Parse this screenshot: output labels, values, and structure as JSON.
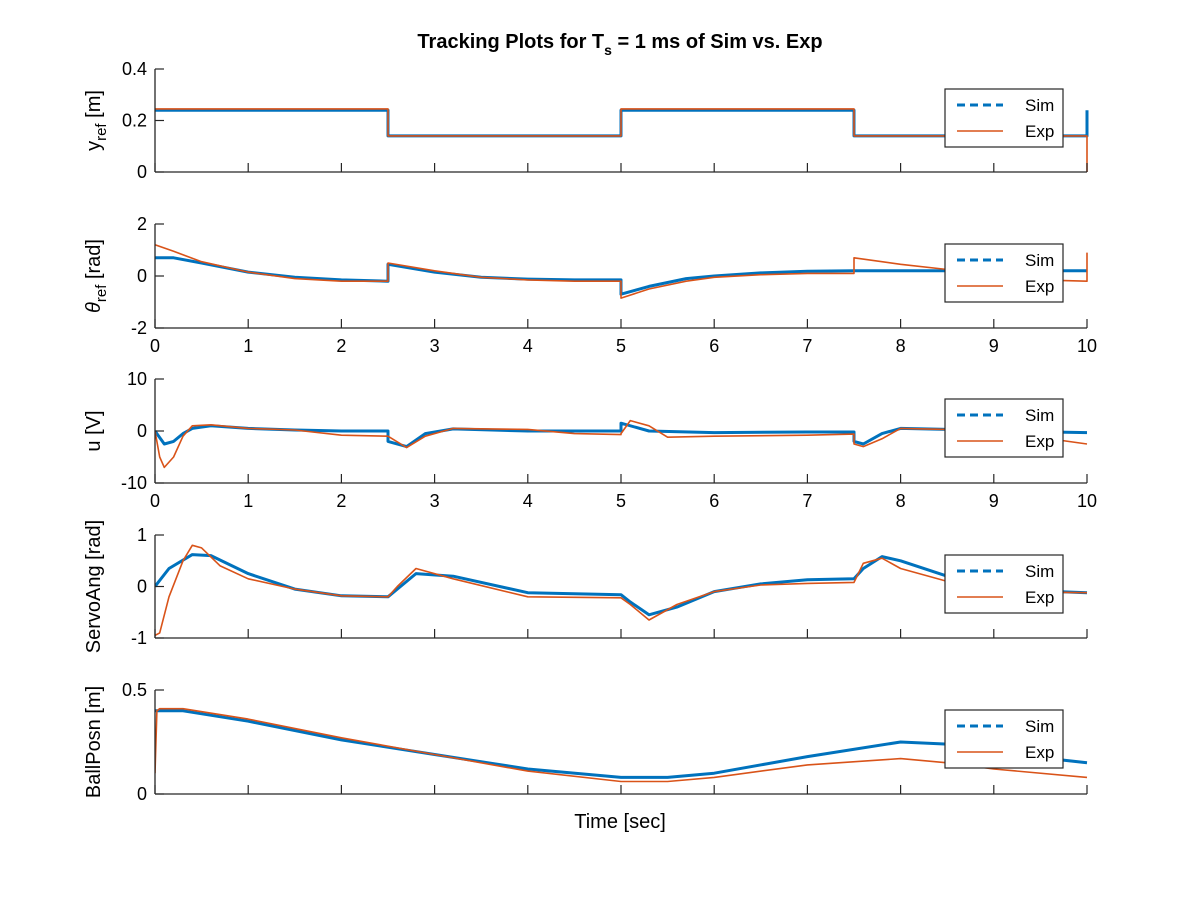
{
  "figure": {
    "title": "Tracking Plots for T_s = 1 ms of Sim vs. Exp",
    "title_parts": {
      "prefix": "Tracking Plots for T",
      "subscript": "s",
      "suffix": " = 1 ms of Sim vs. Exp"
    },
    "xlabel": "Time [sec]"
  },
  "colors": {
    "sim": "#0072BD",
    "exp": "#D95319",
    "axes": "#262626",
    "background": "#ffffff"
  },
  "legend_entries": [
    {
      "label": "Sim",
      "style": "dashed",
      "color": "#0072BD"
    },
    {
      "label": "Exp",
      "style": "solid",
      "color": "#D95319"
    }
  ],
  "chart_data": [
    {
      "type": "line",
      "ylabel": "y_ref [m]",
      "ylabel_parts": {
        "main": "y",
        "sub": "ref",
        "rest": " [m]"
      },
      "xlim": [
        0,
        10
      ],
      "ylim": [
        0,
        0.4
      ],
      "xticks": [
        0,
        1,
        2,
        3,
        4,
        5,
        6,
        7,
        8,
        9,
        10
      ],
      "show_xtick_labels": false,
      "yticks": [
        0,
        0.2,
        0.4
      ],
      "ytick_labels": [
        "0",
        "0.2",
        "0.4"
      ],
      "grid": false,
      "legend": "right",
      "series": [
        {
          "name": "Sim",
          "x": [
            0,
            2.5,
            2.5,
            5,
            5,
            7.5,
            7.5,
            10,
            10
          ],
          "y": [
            0.24,
            0.24,
            0.14,
            0.14,
            0.24,
            0.24,
            0.14,
            0.14,
            0.24
          ]
        },
        {
          "name": "Exp",
          "x": [
            0,
            2.5,
            2.5,
            5,
            5,
            7.5,
            7.5,
            10,
            10
          ],
          "y": [
            0.245,
            0.245,
            0.14,
            0.14,
            0.245,
            0.245,
            0.14,
            0.14,
            0.0
          ]
        }
      ]
    },
    {
      "type": "line",
      "ylabel": "θ_ref [rad]",
      "ylabel_parts": {
        "main": "θ",
        "sub": "ref",
        "rest": " [rad]"
      },
      "xlim": [
        0,
        10
      ],
      "ylim": [
        -2,
        2
      ],
      "xticks": [
        0,
        1,
        2,
        3,
        4,
        5,
        6,
        7,
        8,
        9,
        10
      ],
      "show_xtick_labels": true,
      "yticks": [
        -2,
        0,
        2
      ],
      "ytick_labels": [
        "-2",
        "0",
        "2"
      ],
      "grid": false,
      "legend": "right",
      "series": [
        {
          "name": "Sim",
          "x": [
            0,
            0.2,
            0.5,
            1,
            1.5,
            2,
            2.5,
            2.5,
            3,
            3.5,
            4,
            4.5,
            5,
            5,
            5.3,
            5.7,
            6,
            6.5,
            7,
            7.5,
            7.5,
            10
          ],
          "y": [
            0.7,
            0.7,
            0.5,
            0.15,
            -0.05,
            -0.15,
            -0.2,
            0.45,
            0.15,
            -0.05,
            -0.12,
            -0.15,
            -0.15,
            -0.7,
            -0.4,
            -0.1,
            0.0,
            0.12,
            0.18,
            0.2,
            0.2,
            0.2
          ]
        },
        {
          "name": "Exp",
          "x": [
            0,
            0.2,
            0.5,
            1,
            1.5,
            2,
            2.5,
            2.5,
            3,
            3.5,
            4,
            4.5,
            5,
            5,
            5.3,
            5.7,
            6,
            6.5,
            7,
            7.5,
            7.5,
            8,
            8.5,
            9,
            9.5,
            10,
            10
          ],
          "y": [
            1.2,
            0.95,
            0.55,
            0.15,
            -0.1,
            -0.2,
            -0.2,
            0.5,
            0.2,
            -0.05,
            -0.15,
            -0.2,
            -0.2,
            -0.85,
            -0.5,
            -0.2,
            -0.05,
            0.05,
            0.1,
            0.1,
            0.7,
            0.45,
            0.25,
            0.05,
            -0.15,
            -0.2,
            0.9
          ]
        }
      ]
    },
    {
      "type": "line",
      "ylabel": "u [V]",
      "xlim": [
        0,
        10
      ],
      "ylim": [
        -10,
        10
      ],
      "xticks": [
        0,
        1,
        2,
        3,
        4,
        5,
        6,
        7,
        8,
        9,
        10
      ],
      "show_xtick_labels": true,
      "yticks": [
        -10,
        0,
        10
      ],
      "ytick_labels": [
        "-10",
        "0",
        "10"
      ],
      "grid": false,
      "legend": "right",
      "series": [
        {
          "name": "Sim",
          "x": [
            0,
            0.1,
            0.2,
            0.3,
            0.4,
            0.6,
            1,
            1.5,
            2,
            2.5,
            2.5,
            2.7,
            2.9,
            3.2,
            4,
            5,
            5,
            5.3,
            6,
            7,
            7.5,
            7.5,
            7.6,
            7.8,
            8,
            8.5,
            9,
            10
          ],
          "y": [
            0,
            -2.5,
            -2.0,
            -0.5,
            0.5,
            1.0,
            0.5,
            0.2,
            0,
            0,
            -2,
            -3,
            -0.5,
            0.4,
            0,
            0,
            1.5,
            0,
            -0.3,
            -0.2,
            -0.2,
            -2,
            -2.5,
            -0.5,
            0.5,
            0.3,
            0,
            -0.3
          ]
        },
        {
          "name": "Exp",
          "x": [
            0,
            0.05,
            0.1,
            0.2,
            0.3,
            0.4,
            0.6,
            1,
            1.5,
            2,
            2.5,
            2.5,
            2.7,
            2.9,
            3.2,
            4,
            4.5,
            5,
            5,
            5.1,
            5.3,
            5.5,
            6,
            7,
            7.5,
            7.5,
            7.6,
            7.8,
            8,
            8.5,
            9,
            10
          ],
          "y": [
            0,
            -5,
            -7.0,
            -5,
            -1,
            1.0,
            1.2,
            0.5,
            0.2,
            -0.8,
            -1,
            -1,
            -3.2,
            -1,
            0.5,
            0.3,
            -0.5,
            -0.7,
            -0.5,
            2.0,
            1.0,
            -1.2,
            -1.0,
            -0.8,
            -0.6,
            -2.5,
            -3.0,
            -1.5,
            0.5,
            0.3,
            0,
            -2.5
          ]
        }
      ]
    },
    {
      "type": "line",
      "ylabel": "ServoAng [rad]",
      "xlim": [
        0,
        10
      ],
      "ylim": [
        -1,
        1
      ],
      "xticks": [
        0,
        1,
        2,
        3,
        4,
        5,
        6,
        7,
        8,
        9,
        10
      ],
      "show_xtick_labels": false,
      "yticks": [
        -1,
        0,
        1
      ],
      "ytick_labels": [
        "-1",
        "0",
        "1"
      ],
      "grid": false,
      "legend": "right",
      "series": [
        {
          "name": "Sim",
          "x": [
            0,
            0.15,
            0.4,
            0.6,
            1,
            1.5,
            2,
            2.5,
            2.6,
            2.8,
            3.2,
            4,
            5,
            5.1,
            5.3,
            5.6,
            6,
            6.5,
            7,
            7.5,
            7.6,
            7.8,
            8,
            8.5,
            9,
            10
          ],
          "y": [
            0,
            0.35,
            0.62,
            0.6,
            0.25,
            -0.05,
            -0.18,
            -0.2,
            -0.05,
            0.25,
            0.2,
            -0.12,
            -0.16,
            -0.3,
            -0.55,
            -0.4,
            -0.1,
            0.05,
            0.13,
            0.15,
            0.35,
            0.58,
            0.5,
            0.2,
            -0.05,
            -0.12
          ]
        },
        {
          "name": "Exp",
          "x": [
            0,
            0.05,
            0.15,
            0.3,
            0.4,
            0.5,
            0.7,
            1,
            1.5,
            2,
            2.5,
            2.6,
            2.8,
            3.2,
            4,
            5,
            5.1,
            5.3,
            5.6,
            6,
            6.5,
            7,
            7.5,
            7.6,
            7.8,
            8,
            8.5,
            9,
            10
          ],
          "y": [
            -0.95,
            -0.9,
            -0.2,
            0.5,
            0.8,
            0.75,
            0.4,
            0.15,
            -0.05,
            -0.18,
            -0.2,
            0,
            0.35,
            0.15,
            -0.2,
            -0.22,
            -0.35,
            -0.65,
            -0.35,
            -0.1,
            0.03,
            0.06,
            0.08,
            0.45,
            0.55,
            0.35,
            0.1,
            -0.1,
            -0.12
          ]
        }
      ]
    },
    {
      "type": "line",
      "ylabel": "BallPosn [m]",
      "xlim": [
        0,
        10
      ],
      "ylim": [
        0,
        0.5
      ],
      "xticks": [
        0,
        1,
        2,
        3,
        4,
        5,
        6,
        7,
        8,
        9,
        10
      ],
      "show_xtick_labels": false,
      "yticks": [
        0,
        0.5
      ],
      "ytick_labels": [
        "0",
        "0.5"
      ],
      "grid": false,
      "legend": "right",
      "series": [
        {
          "name": "Sim",
          "x": [
            0,
            0.05,
            0.3,
            1,
            2,
            3,
            4,
            5,
            5.5,
            6,
            7,
            8,
            8.5,
            9,
            10
          ],
          "y": [
            0.4,
            0.4,
            0.4,
            0.35,
            0.26,
            0.19,
            0.12,
            0.08,
            0.08,
            0.1,
            0.18,
            0.25,
            0.24,
            0.2,
            0.15
          ]
        },
        {
          "name": "Exp",
          "x": [
            0,
            0.02,
            0.05,
            0.3,
            1,
            2,
            3,
            4,
            5,
            5.5,
            6,
            7,
            8,
            8.5,
            9,
            10
          ],
          "y": [
            0.1,
            0.4,
            0.41,
            0.41,
            0.36,
            0.27,
            0.19,
            0.11,
            0.06,
            0.06,
            0.08,
            0.14,
            0.17,
            0.15,
            0.12,
            0.08
          ]
        }
      ]
    }
  ]
}
